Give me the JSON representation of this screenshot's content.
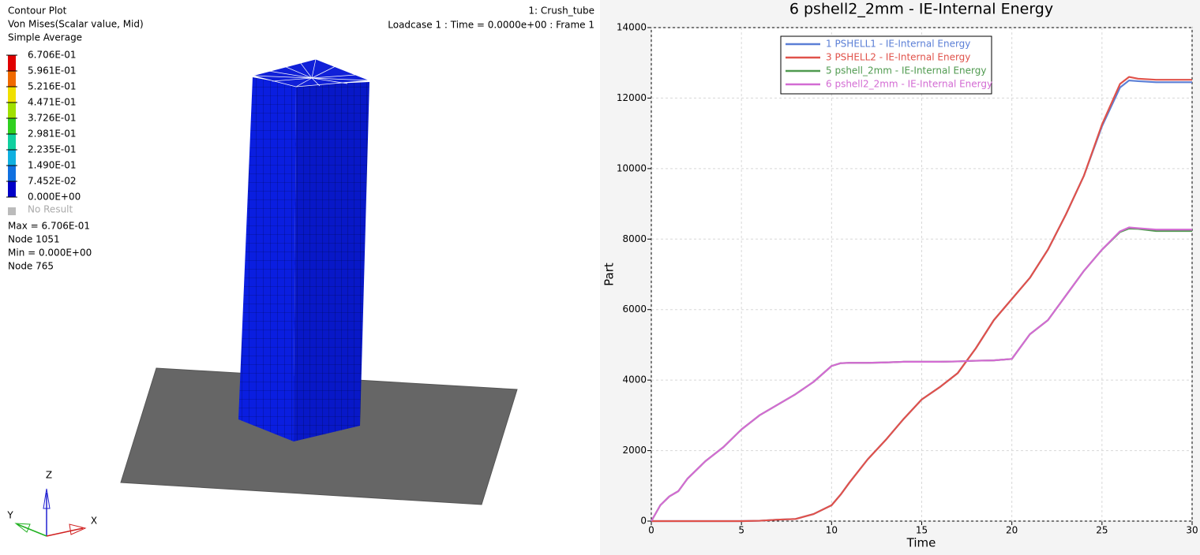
{
  "viewport": {
    "plot_title": "Contour Plot",
    "result": "Von Mises(Scalar value, Mid)",
    "averaging": "Simple Average",
    "model": "1: Crush_tube",
    "loadcase": "Loadcase 1 : Time = 0.0000e+00 : Frame 1",
    "legend": {
      "labels": [
        "6.706E-01",
        "5.961E-01",
        "5.216E-01",
        "4.471E-01",
        "3.726E-01",
        "2.981E-01",
        "2.235E-01",
        "1.490E-01",
        "7.452E-02",
        "0.000E+00"
      ],
      "colors": [
        "#e00000",
        "#f06a00",
        "#f0e000",
        "#a0e000",
        "#30d020",
        "#10d0a0",
        "#10b0e0",
        "#1070e0",
        "#0000c8"
      ],
      "no_result": "No Result"
    },
    "max": "Max =  6.706E-01",
    "max_node": "Node 1051",
    "min": "Min =  0.000E+00",
    "min_node": "Node 765",
    "triad": {
      "z": "Z",
      "y": "Y",
      "x": "X"
    }
  },
  "chart_data": {
    "type": "line",
    "title": "6 pshell2_2mm - IE-Internal Energy",
    "x_label": "Time",
    "y_label": "Part",
    "xlim": [
      0,
      30
    ],
    "xticks": [
      0,
      5,
      10,
      15,
      20,
      25,
      30
    ],
    "ylim": [
      0,
      14000
    ],
    "yticks": [
      0,
      2000,
      4000,
      6000,
      8000,
      10000,
      12000,
      14000
    ],
    "grid": true,
    "legend_position": "top",
    "x": [
      0,
      0.5,
      1,
      1.5,
      2,
      3,
      4,
      5,
      6,
      7,
      8,
      9,
      10,
      10.5,
      11,
      12,
      13,
      14,
      15,
      16,
      17,
      18,
      19,
      20,
      21,
      22,
      23,
      24,
      25,
      26,
      26.5,
      27,
      28,
      29,
      30
    ],
    "series": [
      {
        "name": "1 PSHELL1 - IE-Internal Energy",
        "color": "#5b7fd6",
        "values": [
          0,
          0,
          0,
          0,
          0,
          0,
          0,
          0,
          10,
          40,
          60,
          200,
          450,
          750,
          1100,
          1750,
          2300,
          2900,
          3450,
          3800,
          4200,
          4900,
          5700,
          6300,
          6900,
          7700,
          8700,
          9800,
          11200,
          12300,
          12500,
          12480,
          12450,
          12450,
          12450
        ]
      },
      {
        "name": "3 PSHELL2 - IE-Internal Energy",
        "color": "#e0524a",
        "values": [
          0,
          0,
          0,
          0,
          0,
          0,
          0,
          0,
          10,
          40,
          60,
          200,
          450,
          750,
          1100,
          1750,
          2300,
          2900,
          3450,
          3800,
          4200,
          4900,
          5700,
          6300,
          6900,
          7700,
          8700,
          9800,
          11250,
          12400,
          12600,
          12550,
          12520,
          12520,
          12520
        ]
      },
      {
        "name": "5 pshell_2mm - IE-Internal Energy",
        "color": "#4f9a4f",
        "values": [
          0,
          450,
          700,
          850,
          1200,
          1700,
          2100,
          2600,
          3000,
          3300,
          3600,
          3950,
          4400,
          4480,
          4490,
          4490,
          4500,
          4520,
          4520,
          4520,
          4530,
          4550,
          4560,
          4600,
          5300,
          5700,
          6400,
          7100,
          7700,
          8200,
          8300,
          8290,
          8230,
          8230,
          8230
        ]
      },
      {
        "name": "6 pshell2_2mm - IE-Internal Energy",
        "color": "#d36bd3",
        "values": [
          0,
          450,
          700,
          850,
          1200,
          1700,
          2100,
          2600,
          3000,
          3300,
          3600,
          3950,
          4400,
          4480,
          4490,
          4490,
          4500,
          4520,
          4520,
          4520,
          4530,
          4550,
          4560,
          4600,
          5300,
          5700,
          6400,
          7100,
          7700,
          8220,
          8330,
          8310,
          8270,
          8270,
          8270
        ]
      }
    ]
  }
}
